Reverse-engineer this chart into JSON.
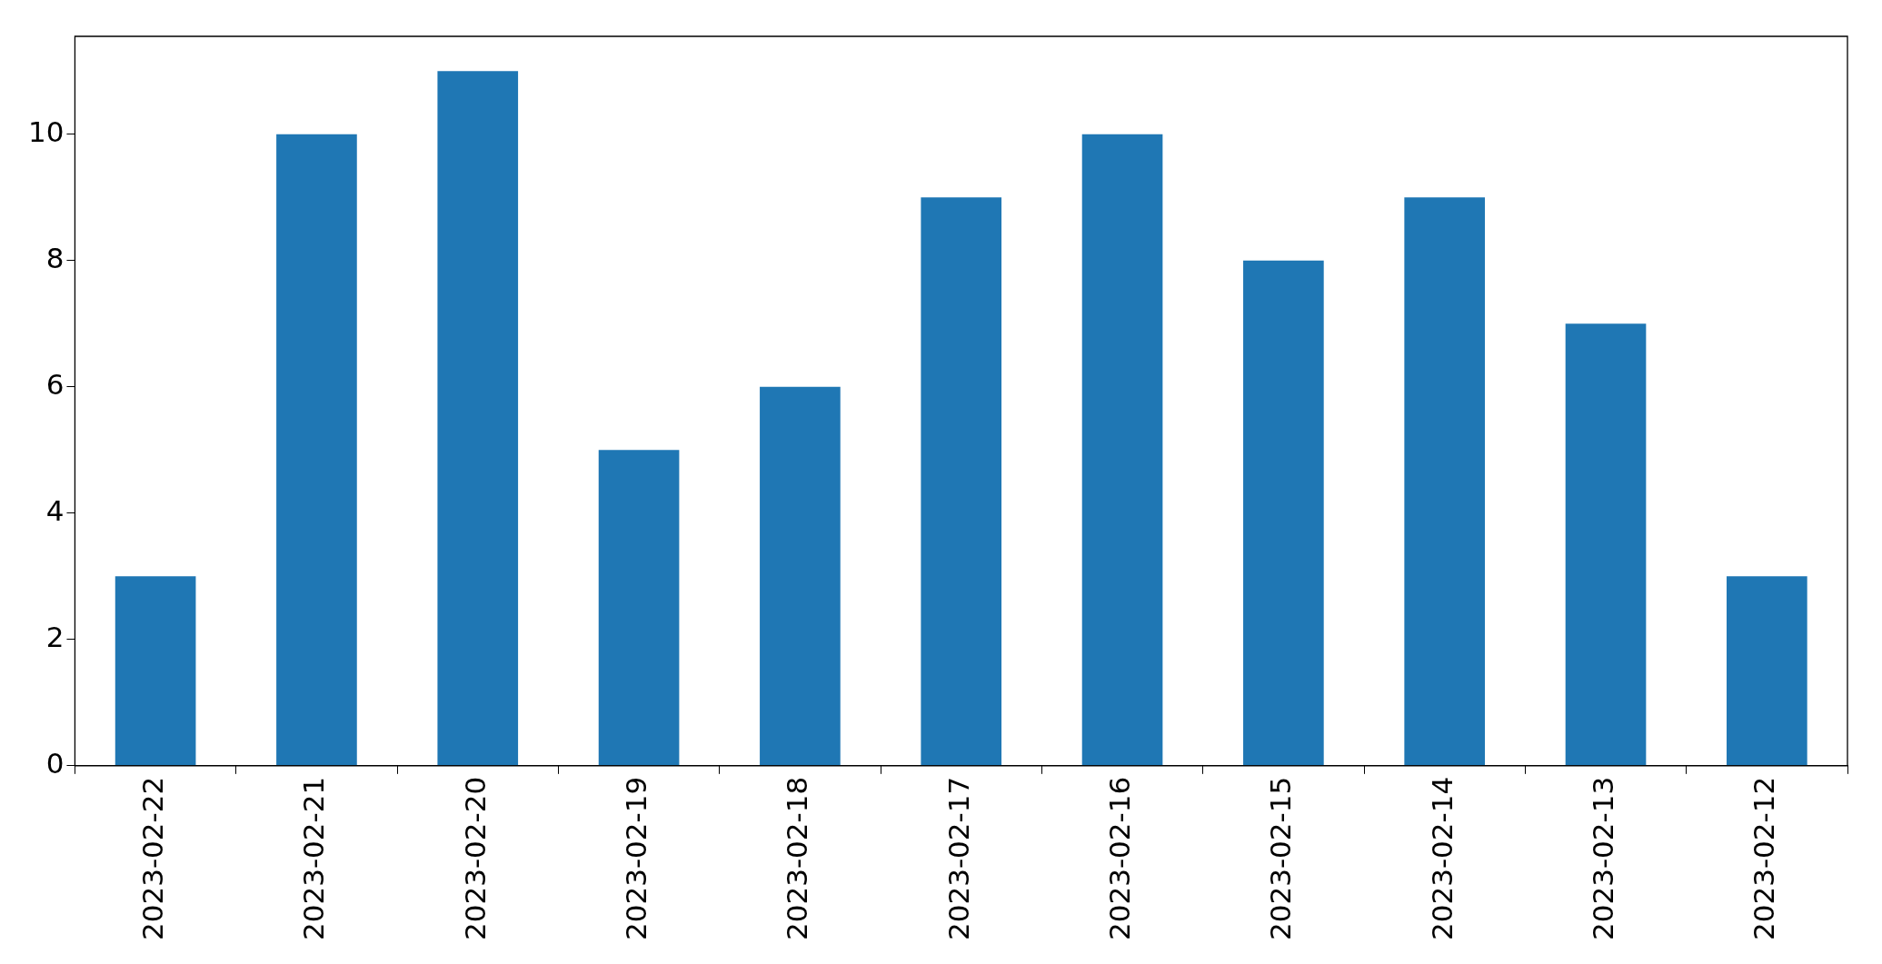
{
  "chart_data": {
    "type": "bar",
    "categories": [
      "2023-02-22",
      "2023-02-21",
      "2023-02-20",
      "2023-02-19",
      "2023-02-18",
      "2023-02-17",
      "2023-02-16",
      "2023-02-15",
      "2023-02-14",
      "2023-02-13",
      "2023-02-12"
    ],
    "values": [
      3,
      10,
      11,
      5,
      6,
      9,
      10,
      8,
      9,
      7,
      3
    ],
    "color": "#1f77b4",
    "ylim": [
      0,
      11.55
    ],
    "yticks": [
      0,
      2,
      4,
      6,
      8,
      10
    ],
    "grid": false,
    "legend": false
  }
}
